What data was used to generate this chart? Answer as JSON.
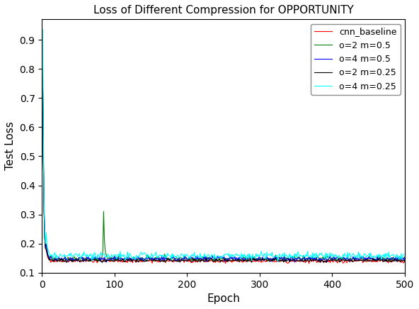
{
  "title": "Loss of Different Compression for OPPORTUNITY",
  "xlabel": "Epoch",
  "ylabel": "Test Loss",
  "xlim": [
    0,
    500
  ],
  "ylim": [
    0.1,
    0.97
  ],
  "yticks": [
    0.1,
    0.2,
    0.3,
    0.4,
    0.5,
    0.6,
    0.7,
    0.8,
    0.9
  ],
  "xticks": [
    0,
    100,
    200,
    300,
    400,
    500
  ],
  "series": [
    {
      "label": "cnn_baseline",
      "color": "red",
      "lw": 0.8
    },
    {
      "label": "o=2 m=0.5",
      "color": "green",
      "lw": 0.8
    },
    {
      "label": "o=4 m=0.5",
      "color": "blue",
      "lw": 0.8
    },
    {
      "label": "o=2 m=0.25",
      "color": "black",
      "lw": 0.8
    },
    {
      "label": "o=4 m=0.25",
      "color": "cyan",
      "lw": 0.8
    }
  ],
  "n_epochs": 500,
  "figsize": [
    5.92,
    4.36
  ],
  "dpi": 100
}
